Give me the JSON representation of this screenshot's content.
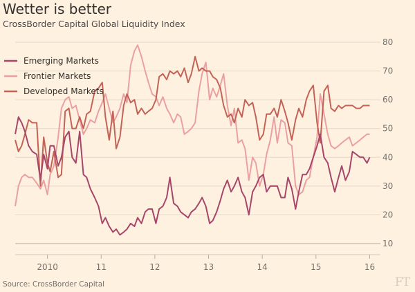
{
  "title": "Wetter is better",
  "subtitle": "CrossBorder Capital Global Liquidity Index",
  "source": "Source: CrossBorder Capital",
  "logo": "FT",
  "chart_data": {
    "type": "line",
    "title": "Wetter is better",
    "subtitle": "CrossBorder Capital Global Liquidity Index",
    "xlabel": "",
    "ylabel": "",
    "ylim": [
      10,
      80
    ],
    "yticks": [
      10,
      20,
      30,
      40,
      50,
      60,
      70,
      80
    ],
    "xlim": [
      2009.4,
      2016.2
    ],
    "xticks": [
      {
        "x": 2010.0,
        "label": "2010"
      },
      {
        "x": 2011.0,
        "label": "11"
      },
      {
        "x": 2012.0,
        "label": "12"
      },
      {
        "x": 2013.0,
        "label": "13"
      },
      {
        "x": 2014.0,
        "label": "14"
      },
      {
        "x": 2015.0,
        "label": "15"
      },
      {
        "x": 2016.0,
        "label": "16"
      }
    ],
    "grid": "horizontal",
    "legend_position": "top-left",
    "series": [
      {
        "name": "Emerging Markets",
        "color": "#a6466a",
        "x": [
          2009.4,
          2009.46,
          2009.52,
          2009.58,
          2009.65,
          2009.72,
          2009.8,
          2009.87,
          2009.93,
          2010.0,
          2010.05,
          2010.12,
          2010.2,
          2010.26,
          2010.33,
          2010.4,
          2010.46,
          2010.53,
          2010.6,
          2010.67,
          2010.73,
          2010.8,
          2010.88,
          2010.95,
          2011.02,
          2011.08,
          2011.15,
          2011.22,
          2011.28,
          2011.35,
          2011.42,
          2011.48,
          2011.55,
          2011.62,
          2011.68,
          2011.75,
          2011.82,
          2011.88,
          2011.95,
          2012.02,
          2012.08,
          2012.15,
          2012.22,
          2012.28,
          2012.35,
          2012.42,
          2012.48,
          2012.55,
          2012.62,
          2012.68,
          2012.75,
          2012.82,
          2012.88,
          2012.95,
          2013.02,
          2013.08,
          2013.15,
          2013.22,
          2013.28,
          2013.35,
          2013.42,
          2013.48,
          2013.55,
          2013.62,
          2013.68,
          2013.75,
          2013.82,
          2013.88,
          2013.95,
          2014.02,
          2014.08,
          2014.15,
          2014.22,
          2014.28,
          2014.35,
          2014.42,
          2014.48,
          2014.55,
          2014.62,
          2014.68,
          2014.75,
          2014.82,
          2014.88,
          2014.95,
          2015.02,
          2015.08,
          2015.15,
          2015.22,
          2015.28,
          2015.35,
          2015.42,
          2015.48,
          2015.55,
          2015.62,
          2015.68,
          2015.75,
          2015.82,
          2015.88,
          2015.95,
          2016.0
        ],
        "values": [
          48,
          54,
          52,
          49,
          44,
          42,
          41,
          32,
          41,
          36,
          44,
          44,
          37,
          40,
          47,
          49,
          40,
          38,
          49,
          34,
          33,
          29,
          26,
          23,
          17,
          19,
          16,
          14,
          15,
          13,
          14,
          15,
          17,
          16,
          19,
          17,
          21,
          22,
          22,
          17,
          22,
          23,
          26,
          33,
          24,
          23,
          21,
          20,
          19,
          21,
          22,
          24,
          26,
          23,
          17,
          18,
          21,
          25,
          29,
          32,
          28,
          30,
          33,
          28,
          26,
          20,
          28,
          30,
          33,
          34,
          28,
          30,
          30,
          30,
          26,
          26,
          33,
          29,
          22,
          28,
          34,
          34,
          36,
          40,
          44,
          48,
          40,
          38,
          33,
          28,
          33,
          37,
          32,
          35,
          42,
          41,
          40,
          40,
          38,
          40
        ]
      },
      {
        "name": "Frontier Markets",
        "color": "#eaa0a3",
        "x": [
          2009.4,
          2009.46,
          2009.52,
          2009.58,
          2009.65,
          2009.72,
          2009.8,
          2009.87,
          2009.93,
          2010.0,
          2010.05,
          2010.12,
          2010.2,
          2010.26,
          2010.33,
          2010.4,
          2010.46,
          2010.53,
          2010.6,
          2010.67,
          2010.73,
          2010.8,
          2010.88,
          2010.95,
          2011.02,
          2011.08,
          2011.15,
          2011.22,
          2011.28,
          2011.35,
          2011.42,
          2011.48,
          2011.55,
          2011.62,
          2011.68,
          2011.75,
          2011.82,
          2011.88,
          2011.95,
          2012.02,
          2012.08,
          2012.15,
          2012.22,
          2012.28,
          2012.35,
          2012.42,
          2012.48,
          2012.55,
          2012.62,
          2012.68,
          2012.75,
          2012.82,
          2012.88,
          2012.95,
          2013.02,
          2013.08,
          2013.15,
          2013.22,
          2013.28,
          2013.35,
          2013.42,
          2013.48,
          2013.55,
          2013.62,
          2013.68,
          2013.75,
          2013.82,
          2013.88,
          2013.95,
          2014.02,
          2014.08,
          2014.15,
          2014.22,
          2014.28,
          2014.35,
          2014.42,
          2014.48,
          2014.55,
          2014.62,
          2014.68,
          2014.75,
          2014.82,
          2014.88,
          2014.95,
          2015.02,
          2015.08,
          2015.15,
          2015.22,
          2015.28,
          2015.35,
          2015.42,
          2015.48,
          2015.55,
          2015.62,
          2015.68,
          2015.75,
          2015.82,
          2015.88,
          2015.95,
          2016.0
        ],
        "values": [
          23,
          30,
          33,
          34,
          33,
          33,
          31,
          29,
          32,
          27,
          34,
          37,
          47,
          57,
          60,
          61,
          57,
          58,
          53,
          48,
          50,
          53,
          52,
          56,
          59,
          62,
          57,
          52,
          54,
          57,
          62,
          59,
          72,
          77,
          79,
          75,
          70,
          66,
          62,
          61,
          58,
          61,
          57,
          55,
          52,
          55,
          54,
          48,
          49,
          50,
          52,
          63,
          69,
          73,
          60,
          64,
          61,
          65,
          69,
          58,
          51,
          57,
          45,
          46,
          43,
          32,
          40,
          38,
          30,
          34,
          41,
          46,
          54,
          45,
          53,
          52,
          45,
          44,
          30,
          27,
          28,
          32,
          33,
          40,
          47,
          62,
          55,
          48,
          44,
          43,
          44,
          45,
          46,
          47,
          44,
          45,
          46,
          47,
          48,
          48
        ]
      },
      {
        "name": "Developed Markets",
        "color": "#c36256",
        "x": [
          2009.4,
          2009.46,
          2009.52,
          2009.58,
          2009.65,
          2009.72,
          2009.8,
          2009.87,
          2009.93,
          2010.0,
          2010.05,
          2010.12,
          2010.2,
          2010.26,
          2010.33,
          2010.4,
          2010.46,
          2010.53,
          2010.6,
          2010.67,
          2010.73,
          2010.8,
          2010.88,
          2010.95,
          2011.02,
          2011.08,
          2011.15,
          2011.22,
          2011.28,
          2011.35,
          2011.42,
          2011.48,
          2011.55,
          2011.62,
          2011.68,
          2011.75,
          2011.82,
          2011.88,
          2011.95,
          2012.02,
          2012.08,
          2012.15,
          2012.22,
          2012.28,
          2012.35,
          2012.42,
          2012.48,
          2012.55,
          2012.62,
          2012.68,
          2012.75,
          2012.82,
          2012.88,
          2012.95,
          2013.02,
          2013.08,
          2013.15,
          2013.22,
          2013.28,
          2013.35,
          2013.42,
          2013.48,
          2013.55,
          2013.62,
          2013.68,
          2013.75,
          2013.82,
          2013.88,
          2013.95,
          2014.02,
          2014.08,
          2014.15,
          2014.22,
          2014.28,
          2014.35,
          2014.42,
          2014.48,
          2014.55,
          2014.62,
          2014.68,
          2014.75,
          2014.82,
          2014.88,
          2014.95,
          2015.02,
          2015.08,
          2015.15,
          2015.22,
          2015.28,
          2015.35,
          2015.42,
          2015.48,
          2015.55,
          2015.62,
          2015.68,
          2015.75,
          2015.82,
          2015.88,
          2015.95,
          2016.0
        ],
        "values": [
          46,
          42,
          44,
          48,
          53,
          52,
          52,
          30,
          47,
          38,
          35,
          42,
          33,
          34,
          56,
          57,
          50,
          50,
          54,
          50,
          55,
          56,
          63,
          64,
          66,
          54,
          46,
          56,
          43,
          47,
          58,
          62,
          59,
          60,
          55,
          57,
          55,
          56,
          57,
          60,
          68,
          69,
          67,
          70,
          69,
          70,
          68,
          71,
          66,
          69,
          75,
          70,
          71,
          70,
          70,
          68,
          67,
          64,
          58,
          54,
          55,
          52,
          57,
          54,
          60,
          58,
          59,
          54,
          46,
          48,
          55,
          55,
          57,
          54,
          60,
          56,
          52,
          46,
          53,
          57,
          54,
          60,
          63,
          65,
          52,
          45,
          63,
          65,
          57,
          56,
          58,
          57,
          58,
          58,
          58,
          57,
          57,
          58,
          58,
          58
        ]
      }
    ]
  }
}
